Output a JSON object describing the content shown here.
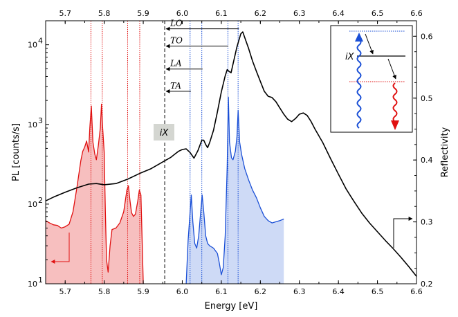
{
  "chart_data": {
    "type": "line",
    "xlabel": "Energy [eV]",
    "ylabel_left": "PL [counts/s]",
    "ylabel_right": "Reflectivity",
    "xlim": [
      5.65,
      6.6
    ],
    "ylim_left": [
      10,
      20000
    ],
    "ylim_right": [
      0.2,
      0.625
    ],
    "left_scale": "log",
    "x_ticks": [
      "5.7",
      "5.8",
      "5.9",
      "6.0",
      "6.1",
      "6.2",
      "6.3",
      "6.4",
      "6.5",
      "6.6"
    ],
    "y_left_ticks": [
      {
        "v": 10,
        "label": "10"
      },
      {
        "v": 100,
        "label": "10"
      },
      {
        "v": 1000,
        "label": "10"
      },
      {
        "v": 10000,
        "label": "10"
      }
    ],
    "y_left_tick_exponents": [
      "1",
      "2",
      "3",
      "4"
    ],
    "y_right_ticks": [
      "0.2",
      "0.3",
      "0.4",
      "0.5",
      "0.6"
    ],
    "colors": {
      "red": "#e01010",
      "blue": "#1a4fd6",
      "red_fill": "#f6b8b8",
      "blue_fill": "#c9d6f5",
      "ix_box": "#d4d6d1"
    },
    "series": [
      {
        "axis": "left",
        "color": "#e01010",
        "points": [
          [
            5.65,
            62
          ],
          [
            5.66,
            58
          ],
          [
            5.67,
            55
          ],
          [
            5.68,
            54
          ],
          [
            5.69,
            50
          ],
          [
            5.7,
            52
          ],
          [
            5.71,
            56
          ],
          [
            5.72,
            80
          ],
          [
            5.73,
            160
          ],
          [
            5.74,
            350
          ],
          [
            5.745,
            460
          ],
          [
            5.75,
            520
          ],
          [
            5.755,
            620
          ],
          [
            5.76,
            450
          ],
          [
            5.763,
            900
          ],
          [
            5.767,
            1700
          ],
          [
            5.771,
            600
          ],
          [
            5.776,
            420
          ],
          [
            5.78,
            360
          ],
          [
            5.785,
            550
          ],
          [
            5.79,
            900
          ],
          [
            5.793,
            1800
          ],
          [
            5.796,
            900
          ],
          [
            5.8,
            450
          ],
          [
            5.803,
            80
          ],
          [
            5.806,
            20
          ],
          [
            5.81,
            14
          ],
          [
            5.815,
            30
          ],
          [
            5.82,
            48
          ],
          [
            5.83,
            50
          ],
          [
            5.84,
            58
          ],
          [
            5.85,
            80
          ],
          [
            5.858,
            150
          ],
          [
            5.862,
            170
          ],
          [
            5.866,
            110
          ],
          [
            5.87,
            78
          ],
          [
            5.875,
            70
          ],
          [
            5.88,
            75
          ],
          [
            5.886,
            110
          ],
          [
            5.89,
            150
          ],
          [
            5.894,
            130
          ],
          [
            5.9,
            10
          ]
        ]
      },
      {
        "axis": "left",
        "color": "#1a4fd6",
        "points": [
          [
            6.01,
            10
          ],
          [
            6.015,
            35
          ],
          [
            6.02,
            80
          ],
          [
            6.023,
            130
          ],
          [
            6.027,
            60
          ],
          [
            6.032,
            32
          ],
          [
            6.037,
            28
          ],
          [
            6.042,
            40
          ],
          [
            6.048,
            90
          ],
          [
            6.051,
            130
          ],
          [
            6.055,
            80
          ],
          [
            6.06,
            40
          ],
          [
            6.065,
            32
          ],
          [
            6.07,
            30
          ],
          [
            6.08,
            28
          ],
          [
            6.09,
            24
          ],
          [
            6.095,
            18
          ],
          [
            6.1,
            13
          ],
          [
            6.105,
            16
          ],
          [
            6.11,
            40
          ],
          [
            6.115,
            300
          ],
          [
            6.118,
            2200
          ],
          [
            6.121,
            600
          ],
          [
            6.126,
            380
          ],
          [
            6.13,
            360
          ],
          [
            6.136,
            460
          ],
          [
            6.14,
            700
          ],
          [
            6.143,
            1500
          ],
          [
            6.147,
            600
          ],
          [
            6.152,
            420
          ],
          [
            6.16,
            280
          ],
          [
            6.17,
            200
          ],
          [
            6.18,
            150
          ],
          [
            6.19,
            120
          ],
          [
            6.2,
            90
          ],
          [
            6.21,
            70
          ],
          [
            6.22,
            62
          ],
          [
            6.23,
            58
          ],
          [
            6.24,
            60
          ],
          [
            6.25,
            62
          ],
          [
            6.26,
            65
          ]
        ]
      },
      {
        "axis": "right",
        "color": "#000000",
        "points": [
          [
            5.65,
            0.334
          ],
          [
            5.67,
            0.34
          ],
          [
            5.7,
            0.348
          ],
          [
            5.73,
            0.355
          ],
          [
            5.76,
            0.361
          ],
          [
            5.78,
            0.362
          ],
          [
            5.8,
            0.36
          ],
          [
            5.83,
            0.362
          ],
          [
            5.86,
            0.369
          ],
          [
            5.89,
            0.378
          ],
          [
            5.92,
            0.386
          ],
          [
            5.95,
            0.397
          ],
          [
            5.97,
            0.404
          ],
          [
            5.99,
            0.414
          ],
          [
            6.0,
            0.417
          ],
          [
            6.01,
            0.418
          ],
          [
            6.02,
            0.412
          ],
          [
            6.03,
            0.403
          ],
          [
            6.04,
            0.415
          ],
          [
            6.05,
            0.432
          ],
          [
            6.055,
            0.432
          ],
          [
            6.06,
            0.425
          ],
          [
            6.065,
            0.42
          ],
          [
            6.07,
            0.428
          ],
          [
            6.08,
            0.448
          ],
          [
            6.09,
            0.478
          ],
          [
            6.1,
            0.51
          ],
          [
            6.11,
            0.536
          ],
          [
            6.115,
            0.546
          ],
          [
            6.12,
            0.543
          ],
          [
            6.125,
            0.541
          ],
          [
            6.13,
            0.555
          ],
          [
            6.14,
            0.583
          ],
          [
            6.15,
            0.604
          ],
          [
            6.155,
            0.607
          ],
          [
            6.16,
            0.598
          ],
          [
            6.17,
            0.58
          ],
          [
            6.18,
            0.56
          ],
          [
            6.19,
            0.543
          ],
          [
            6.2,
            0.527
          ],
          [
            6.21,
            0.511
          ],
          [
            6.22,
            0.503
          ],
          [
            6.23,
            0.501
          ],
          [
            6.24,
            0.494
          ],
          [
            6.25,
            0.484
          ],
          [
            6.26,
            0.474
          ],
          [
            6.27,
            0.466
          ],
          [
            6.28,
            0.462
          ],
          [
            6.29,
            0.467
          ],
          [
            6.3,
            0.474
          ],
          [
            6.31,
            0.476
          ],
          [
            6.32,
            0.472
          ],
          [
            6.33,
            0.462
          ],
          [
            6.34,
            0.45
          ],
          [
            6.36,
            0.428
          ],
          [
            6.38,
            0.402
          ],
          [
            6.4,
            0.377
          ],
          [
            6.42,
            0.353
          ],
          [
            6.44,
            0.333
          ],
          [
            6.46,
            0.314
          ],
          [
            6.48,
            0.298
          ],
          [
            6.5,
            0.284
          ],
          [
            6.52,
            0.27
          ],
          [
            6.54,
            0.257
          ],
          [
            6.56,
            0.243
          ],
          [
            6.58,
            0.228
          ],
          [
            6.6,
            0.212
          ]
        ]
      }
    ],
    "vlines": [
      {
        "x": 5.766,
        "color": "#e01010",
        "style": "dotted"
      },
      {
        "x": 5.795,
        "color": "#e01010",
        "style": "dotted"
      },
      {
        "x": 5.86,
        "color": "#e01010",
        "style": "dotted"
      },
      {
        "x": 5.891,
        "color": "#e01010",
        "style": "dotted"
      },
      {
        "x": 5.955,
        "color": "#000000",
        "style": "dashed"
      },
      {
        "x": 6.02,
        "color": "#1a4fd6",
        "style": "dotted"
      },
      {
        "x": 6.05,
        "color": "#1a4fd6",
        "style": "dotted"
      },
      {
        "x": 6.117,
        "color": "#1a4fd6",
        "style": "dotted"
      },
      {
        "x": 6.143,
        "color": "#1a4fd6",
        "style": "dotted"
      }
    ],
    "phonons": [
      {
        "label": "LO",
        "from": 6.145,
        "y": 0.612
      },
      {
        "label": "TO",
        "from": 6.118,
        "y": 0.584
      },
      {
        "label": "LA",
        "from": 6.052,
        "y": 0.547
      },
      {
        "label": "TA",
        "from": 6.022,
        "y": 0.511
      }
    ],
    "ix_label": "iX",
    "inset_label": "iX"
  }
}
